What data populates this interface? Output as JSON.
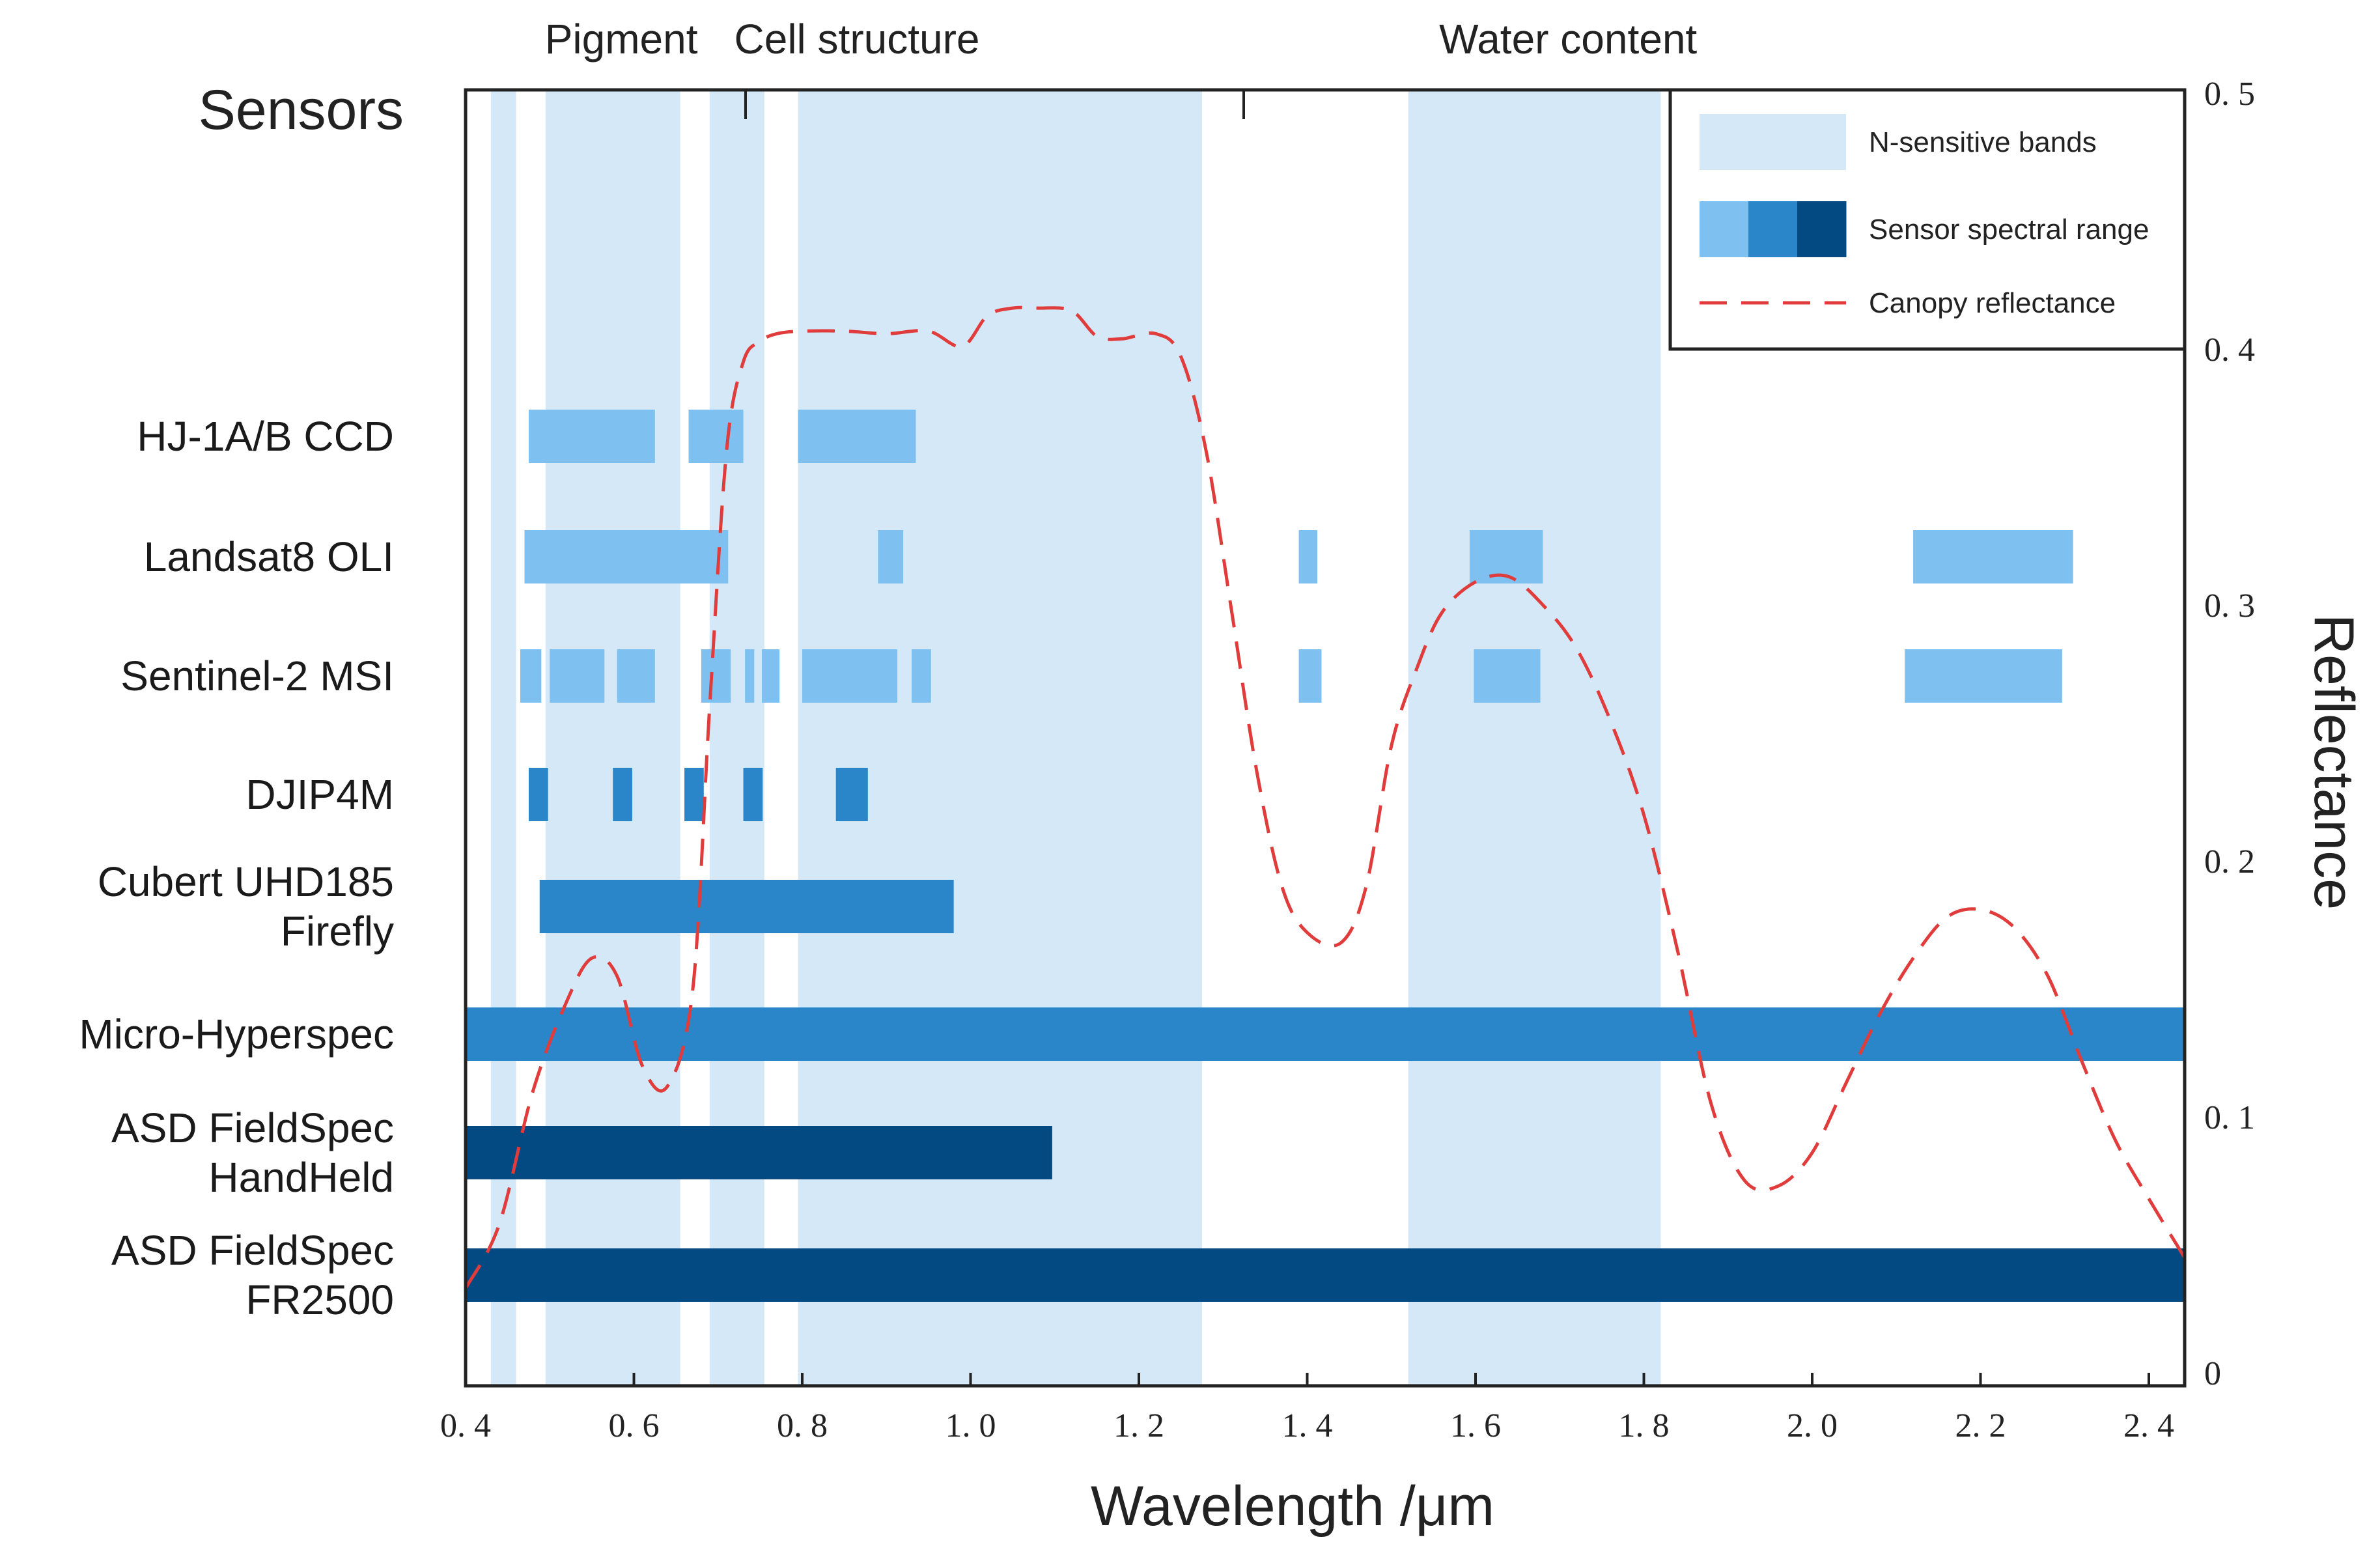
{
  "chart_data": {
    "type": "bar",
    "title": "",
    "sensors_heading": "Sensors",
    "xlabel": "Wavelength /μm",
    "ylabel": "Reflectance",
    "xlim": [
      0.4,
      2.45
    ],
    "ylim": [
      0,
      0.5
    ],
    "x_ticks": [
      {
        "v": 0.4,
        "label": "0. 4"
      },
      {
        "v": 0.6,
        "label": "0. 6"
      },
      {
        "v": 0.8,
        "label": "0. 8"
      },
      {
        "v": 1.0,
        "label": "1. 0"
      },
      {
        "v": 1.2,
        "label": "1. 2"
      },
      {
        "v": 1.4,
        "label": "1. 4"
      },
      {
        "v": 1.6,
        "label": "1. 6"
      },
      {
        "v": 1.8,
        "label": "1. 8"
      },
      {
        "v": 2.0,
        "label": "2. 0"
      },
      {
        "v": 2.2,
        "label": "2. 2"
      },
      {
        "v": 2.4,
        "label": "2. 4"
      }
    ],
    "y_ticks": [
      {
        "v": 0.0,
        "label": "0"
      },
      {
        "v": 0.1,
        "label": "0. 1"
      },
      {
        "v": 0.2,
        "label": "0. 2"
      },
      {
        "v": 0.3,
        "label": "0. 3"
      },
      {
        "v": 0.4,
        "label": "0. 4"
      },
      {
        "v": 0.5,
        "label": "0. 5"
      }
    ],
    "band_categories": [
      {
        "label": "Pigment",
        "center": 0.585
      },
      {
        "label": "Cell structure",
        "center": 0.865
      },
      {
        "label": "Water content",
        "center": 1.71
      }
    ],
    "n_sensitive_bands": [
      [
        0.43,
        0.46
      ],
      [
        0.495,
        0.655
      ],
      [
        0.69,
        0.755
      ],
      [
        0.795,
        1.275
      ],
      [
        1.52,
        1.82
      ]
    ],
    "colors": {
      "n_sensitive": "#d4e8f8",
      "sensor_light": "#7ec0ef",
      "sensor_mid": "#2a86c9",
      "sensor_dark": "#034a82",
      "reflectance": "#e03c3c"
    },
    "sensors": [
      {
        "name": "HJ-1A/B CCD",
        "lines": [
          "HJ-1A/B CCD"
        ],
        "shade": "light",
        "bands": [
          [
            0.475,
            0.625
          ],
          [
            0.665,
            0.73
          ],
          [
            0.795,
            0.935
          ]
        ]
      },
      {
        "name": "Landsat8 OLI",
        "lines": [
          "Landsat8 OLI"
        ],
        "shade": "light",
        "bands": [
          [
            0.47,
            0.712
          ],
          [
            0.89,
            0.92
          ],
          [
            1.39,
            1.412
          ],
          [
            1.593,
            1.68
          ],
          [
            2.12,
            2.31
          ]
        ]
      },
      {
        "name": "Sentinel-2 MSI",
        "lines": [
          "Sentinel-2 MSI"
        ],
        "shade": "light",
        "bands": [
          [
            0.465,
            0.49
          ],
          [
            0.5,
            0.565
          ],
          [
            0.58,
            0.625
          ],
          [
            0.68,
            0.715
          ],
          [
            0.732,
            0.743
          ],
          [
            0.752,
            0.773
          ],
          [
            0.8,
            0.913
          ],
          [
            0.93,
            0.953
          ],
          [
            1.39,
            1.417
          ],
          [
            1.598,
            1.677
          ],
          [
            2.11,
            2.297
          ]
        ]
      },
      {
        "name": "DJIP4M",
        "lines": [
          "DJIP4M"
        ],
        "shade": "mid",
        "bands": [
          [
            0.475,
            0.498
          ],
          [
            0.575,
            0.598
          ],
          [
            0.66,
            0.683
          ],
          [
            0.73,
            0.753
          ],
          [
            0.84,
            0.878
          ]
        ]
      },
      {
        "name": "Cubert UHD185 Firefly",
        "lines": [
          "Cubert UHD185",
          "Firefly"
        ],
        "shade": "mid",
        "bands": [
          [
            0.488,
            0.98
          ]
        ]
      },
      {
        "name": "Micro-Hyperspec",
        "lines": [
          "Micro-Hyperspec"
        ],
        "shade": "mid",
        "bands": [
          [
            0.4,
            2.45
          ]
        ]
      },
      {
        "name": "ASD FieldSpec HandHeld",
        "lines": [
          "ASD  FieldSpec",
          "HandHeld"
        ],
        "shade": "dark",
        "bands": [
          [
            0.4,
            1.097
          ]
        ]
      },
      {
        "name": "ASD FieldSpec FR2500",
        "lines": [
          "ASD  FieldSpec",
          "FR2500"
        ],
        "shade": "dark",
        "bands": [
          [
            0.4,
            2.45
          ]
        ]
      }
    ],
    "canopy_reflectance": {
      "x": [
        0.4,
        0.44,
        0.48,
        0.52,
        0.55,
        0.58,
        0.61,
        0.64,
        0.67,
        0.69,
        0.71,
        0.73,
        0.75,
        0.77,
        0.8,
        0.85,
        0.9,
        0.95,
        0.99,
        1.02,
        1.05,
        1.08,
        1.12,
        1.15,
        1.18,
        1.22,
        1.25,
        1.28,
        1.31,
        1.34,
        1.37,
        1.4,
        1.44,
        1.47,
        1.5,
        1.53,
        1.56,
        1.6,
        1.64,
        1.68,
        1.72,
        1.76,
        1.8,
        1.84,
        1.88,
        1.92,
        1.96,
        2.0,
        2.04,
        2.08,
        2.12,
        2.16,
        2.2,
        2.24,
        2.28,
        2.32,
        2.36,
        2.4,
        2.45
      ],
      "y": [
        0.033,
        0.058,
        0.11,
        0.145,
        0.162,
        0.155,
        0.12,
        0.112,
        0.15,
        0.26,
        0.36,
        0.395,
        0.403,
        0.406,
        0.407,
        0.407,
        0.406,
        0.407,
        0.401,
        0.413,
        0.416,
        0.416,
        0.415,
        0.405,
        0.404,
        0.406,
        0.397,
        0.36,
        0.298,
        0.235,
        0.19,
        0.172,
        0.168,
        0.19,
        0.245,
        0.275,
        0.297,
        0.309,
        0.311,
        0.3,
        0.283,
        0.255,
        0.218,
        0.165,
        0.105,
        0.075,
        0.073,
        0.086,
        0.113,
        0.14,
        0.162,
        0.178,
        0.181,
        0.174,
        0.155,
        0.122,
        0.091,
        0.068,
        0.045
      ]
    },
    "legend": {
      "position": "top-right",
      "items": [
        {
          "label": "N-sensitive bands",
          "kind": "band"
        },
        {
          "label": "Sensor spectral range",
          "kind": "sensor"
        },
        {
          "label": "Canopy reflectance",
          "kind": "line"
        }
      ]
    }
  }
}
